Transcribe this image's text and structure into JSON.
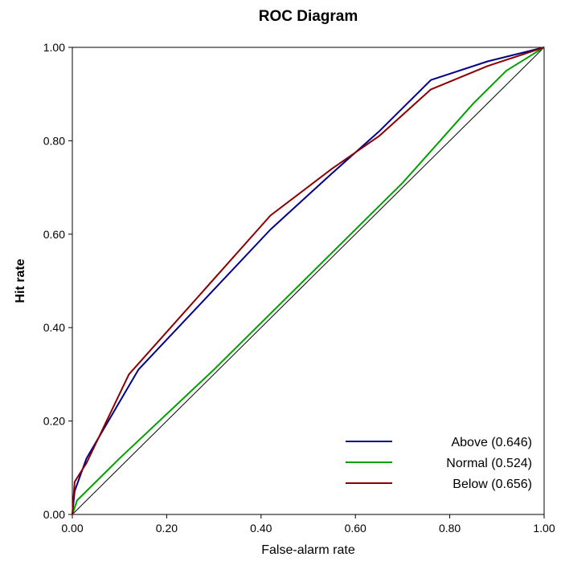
{
  "chart_data": {
    "type": "line",
    "title": "ROC Diagram",
    "xlabel": "False-alarm rate",
    "ylabel": "Hit rate",
    "xlim": [
      0,
      1
    ],
    "ylim": [
      0,
      1
    ],
    "xticks": [
      "0.00",
      "0.20",
      "0.40",
      "0.60",
      "0.80",
      "1.00"
    ],
    "yticks": [
      "0.00",
      "0.20",
      "0.40",
      "0.60",
      "0.80",
      "1.00"
    ],
    "grid": false,
    "legend_position": "bottom-right",
    "diagonal": {
      "color": "#000000"
    },
    "series": [
      {
        "name": "Above (0.646)",
        "color": "#00008B",
        "x": [
          0.0,
          0.005,
          0.03,
          0.14,
          0.28,
          0.42,
          0.55,
          0.65,
          0.76,
          0.88,
          1.0
        ],
        "y": [
          0.0,
          0.05,
          0.12,
          0.31,
          0.46,
          0.61,
          0.73,
          0.82,
          0.93,
          0.97,
          1.0
        ]
      },
      {
        "name": "Normal (0.524)",
        "color": "#00A000",
        "x": [
          0.0,
          0.01,
          0.1,
          0.3,
          0.5,
          0.7,
          0.85,
          0.92,
          1.0
        ],
        "y": [
          0.0,
          0.03,
          0.12,
          0.31,
          0.51,
          0.71,
          0.88,
          0.95,
          1.0
        ]
      },
      {
        "name": "Below (0.656)",
        "color": "#8B0000",
        "x": [
          0.0,
          0.005,
          0.03,
          0.12,
          0.27,
          0.42,
          0.55,
          0.65,
          0.76,
          0.88,
          1.0
        ],
        "y": [
          0.0,
          0.07,
          0.11,
          0.3,
          0.47,
          0.64,
          0.74,
          0.81,
          0.91,
          0.96,
          1.0
        ]
      }
    ]
  }
}
